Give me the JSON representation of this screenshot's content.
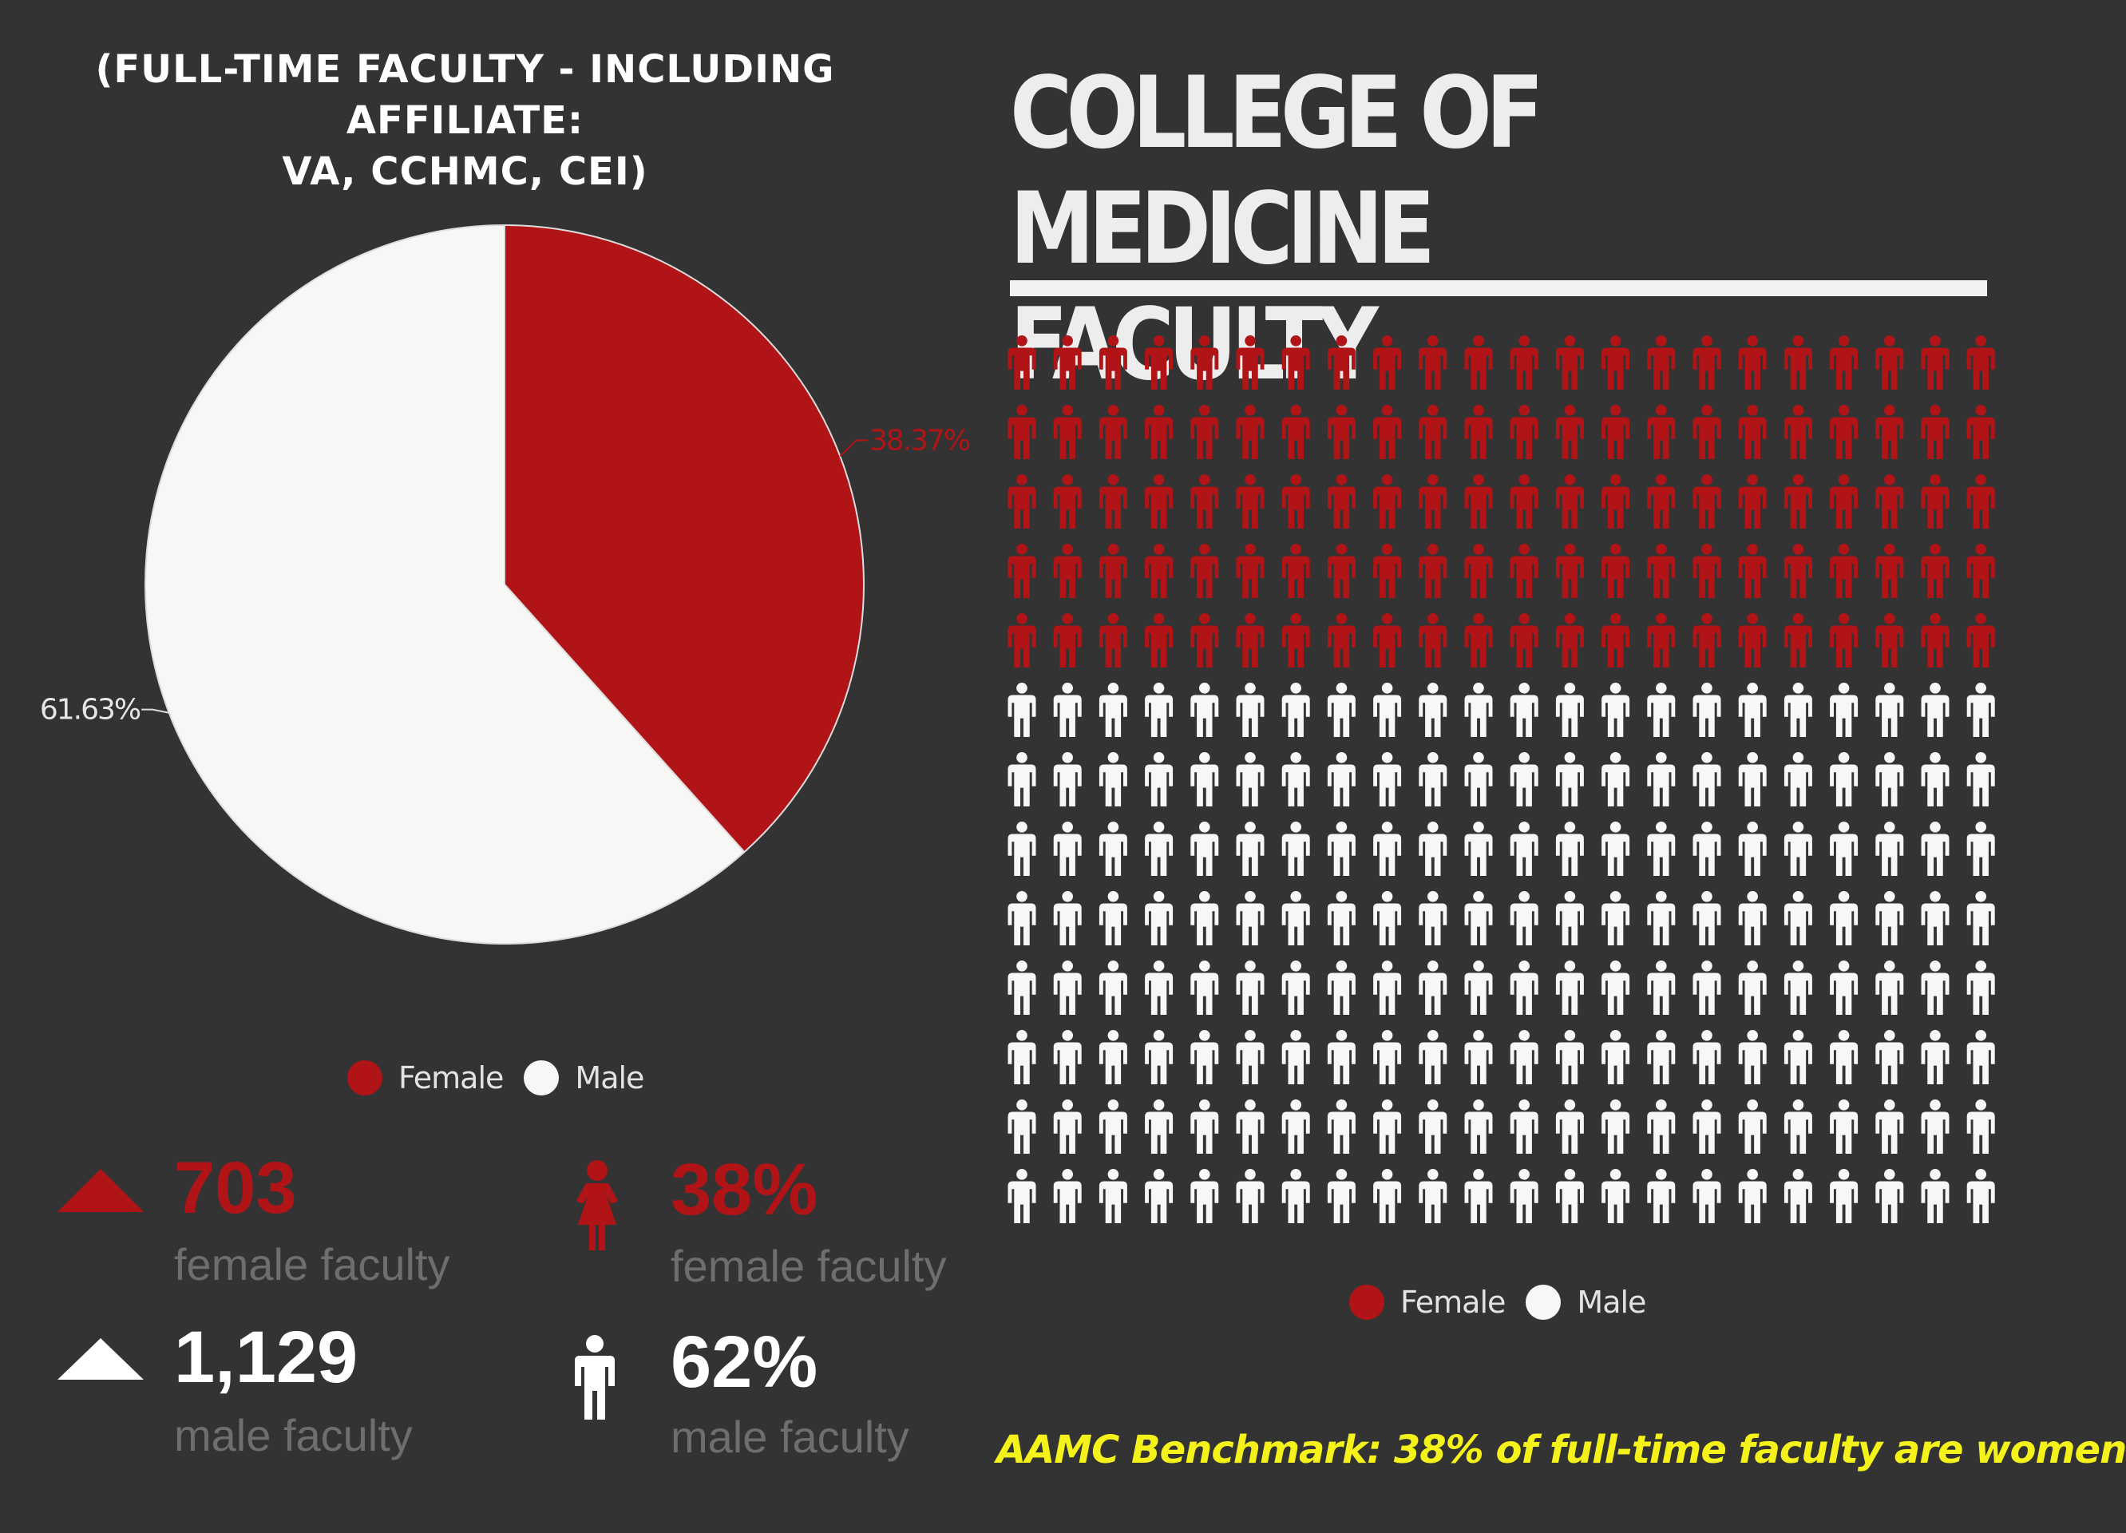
{
  "header": {
    "subtitle_line1": "(FULL-TIME FACULTY - INCLUDING AFFILIATE:",
    "subtitle_line2": "VA, CCHMC, CEI)",
    "title_line1": "COLLEGE OF MEDICINE",
    "title_line2": "FACULTY"
  },
  "colors": {
    "female": "#b11417",
    "male": "#f7f7f5",
    "background": "#333333",
    "benchmark": "#f4f21a"
  },
  "chart_data": [
    {
      "type": "pie",
      "slices": [
        {
          "label": "Female",
          "value": 38.37,
          "display": "38.37%"
        },
        {
          "label": "Male",
          "value": 61.63,
          "display": "61.63%"
        }
      ],
      "legend": [
        "Female",
        "Male"
      ],
      "legend_position": "bottom"
    },
    {
      "type": "pictograph",
      "rows": 13,
      "columns": 22,
      "series": [
        {
          "name": "Female",
          "rows": 5
        },
        {
          "name": "Male",
          "rows": 8
        }
      ],
      "legend": [
        "Female",
        "Male"
      ],
      "legend_position": "bottom"
    }
  ],
  "stats": {
    "female_count": "703",
    "female_count_label": "female faculty",
    "male_count": "1,129",
    "male_count_label": "male faculty",
    "female_pct": "38%",
    "female_pct_label": "female faculty",
    "male_pct": "62%",
    "male_pct_label": "male faculty"
  },
  "icons": {
    "female_count": "triangle-up-icon",
    "male_count": "triangle-up-icon",
    "female_pct": "female-person-icon",
    "male_pct": "male-person-icon"
  },
  "benchmark": "AAMC Benchmark: 38% of full-time faculty are women"
}
